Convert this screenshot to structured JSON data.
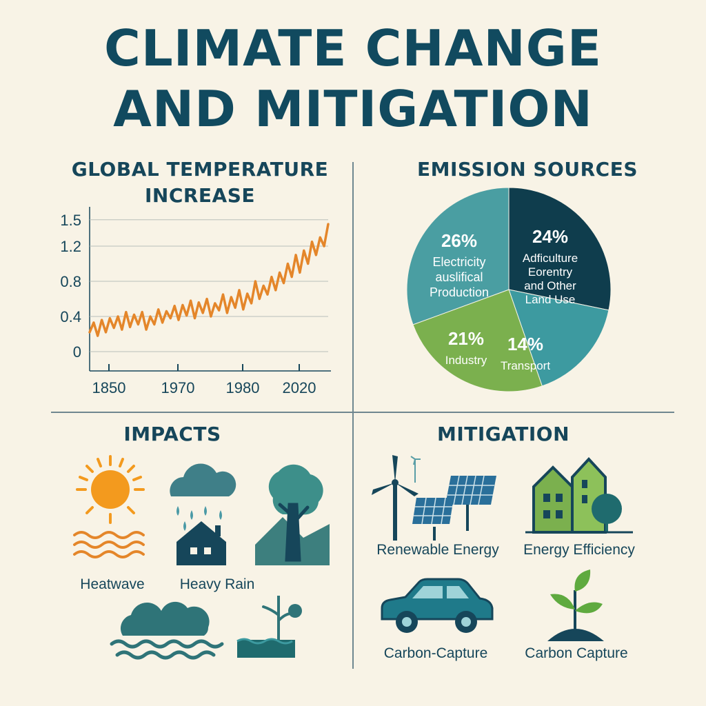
{
  "title_line1": "CLIMATE CHANGE",
  "title_line2": "AND MITIGATION",
  "temperature": {
    "title_line1": "GLOBAL TEMPERATURE",
    "title_line2": "INCREASE"
  },
  "emissions": {
    "title": "EMISSION SOURCES"
  },
  "impacts": {
    "title": "IMPACTS",
    "items": [
      {
        "label": "Heatwave",
        "icon": "sun-heatwave-icon"
      },
      {
        "label": "Heavy Rain",
        "icon": "rain-house-icon"
      },
      {
        "label": "",
        "icon": "drought-tree-icon"
      },
      {
        "label": "",
        "icon": "flood-cloud-icon"
      },
      {
        "label": "",
        "icon": "dead-plant-icon"
      }
    ]
  },
  "mitigation": {
    "title": "MITIGATION",
    "items": [
      {
        "label": "Renewable Energy",
        "icon": "wind-solar-icon"
      },
      {
        "label": "Energy Efficiency",
        "icon": "green-buildings-icon"
      },
      {
        "label": "Carbon-Capture",
        "icon": "car-icon"
      },
      {
        "label": "Carbon Capture",
        "icon": "sprout-icon"
      }
    ]
  },
  "colors": {
    "background": "#f8f3e6",
    "navy": "#114a5f",
    "teal": "#3d8f95",
    "dark_teal": "#0f3d4d",
    "green": "#7bb04e",
    "orange": "#e4862a",
    "sun": "#f39a1e"
  },
  "chart_data": [
    {
      "type": "line",
      "title": "GLOBAL TEMPERATURE INCREASE",
      "xlabel": "",
      "ylabel": "",
      "ylim": [
        0,
        1.5
      ],
      "x_tick_labels": [
        "1850",
        "1970",
        "1980",
        "2020"
      ],
      "y_tick_labels": [
        "1.5",
        "1.2",
        "0.8",
        "0.4",
        "0"
      ],
      "y_tick_values": [
        1.5,
        1.2,
        0.8,
        0.4,
        0
      ],
      "grid": true,
      "series": [
        {
          "color": "#e4862a",
          "values": [
            0.22,
            0.33,
            0.18,
            0.36,
            0.22,
            0.38,
            0.27,
            0.4,
            0.25,
            0.45,
            0.28,
            0.42,
            0.31,
            0.45,
            0.25,
            0.4,
            0.31,
            0.48,
            0.33,
            0.46,
            0.38,
            0.52,
            0.36,
            0.53,
            0.41,
            0.58,
            0.38,
            0.56,
            0.44,
            0.6,
            0.4,
            0.55,
            0.47,
            0.65,
            0.44,
            0.62,
            0.5,
            0.7,
            0.48,
            0.66,
            0.55,
            0.8,
            0.6,
            0.75,
            0.65,
            0.85,
            0.7,
            0.9,
            0.78,
            1.0,
            0.85,
            1.1,
            0.9,
            1.15,
            1.0,
            1.25,
            1.1,
            1.3,
            1.2,
            1.45
          ]
        }
      ]
    },
    {
      "type": "pie",
      "title": "EMISSION SOURCES",
      "slices": [
        {
          "value": 24,
          "percent_label": "24%",
          "label_lines": [
            "Adficulture",
            "Eorentry",
            "and Other",
            "Land Use"
          ],
          "color": "#0f3d4d"
        },
        {
          "value": 14,
          "percent_label": "14%",
          "label_lines": [
            "Transport"
          ],
          "color": "#3d9aa0"
        },
        {
          "value": 21,
          "percent_label": "21%",
          "label_lines": [
            "Industry"
          ],
          "color": "#7bb04e"
        },
        {
          "value": 26,
          "percent_label": "26%",
          "label_lines": [
            "Electricity",
            "auslifical",
            "Production"
          ],
          "color": "#4a9ea2"
        }
      ]
    }
  ]
}
